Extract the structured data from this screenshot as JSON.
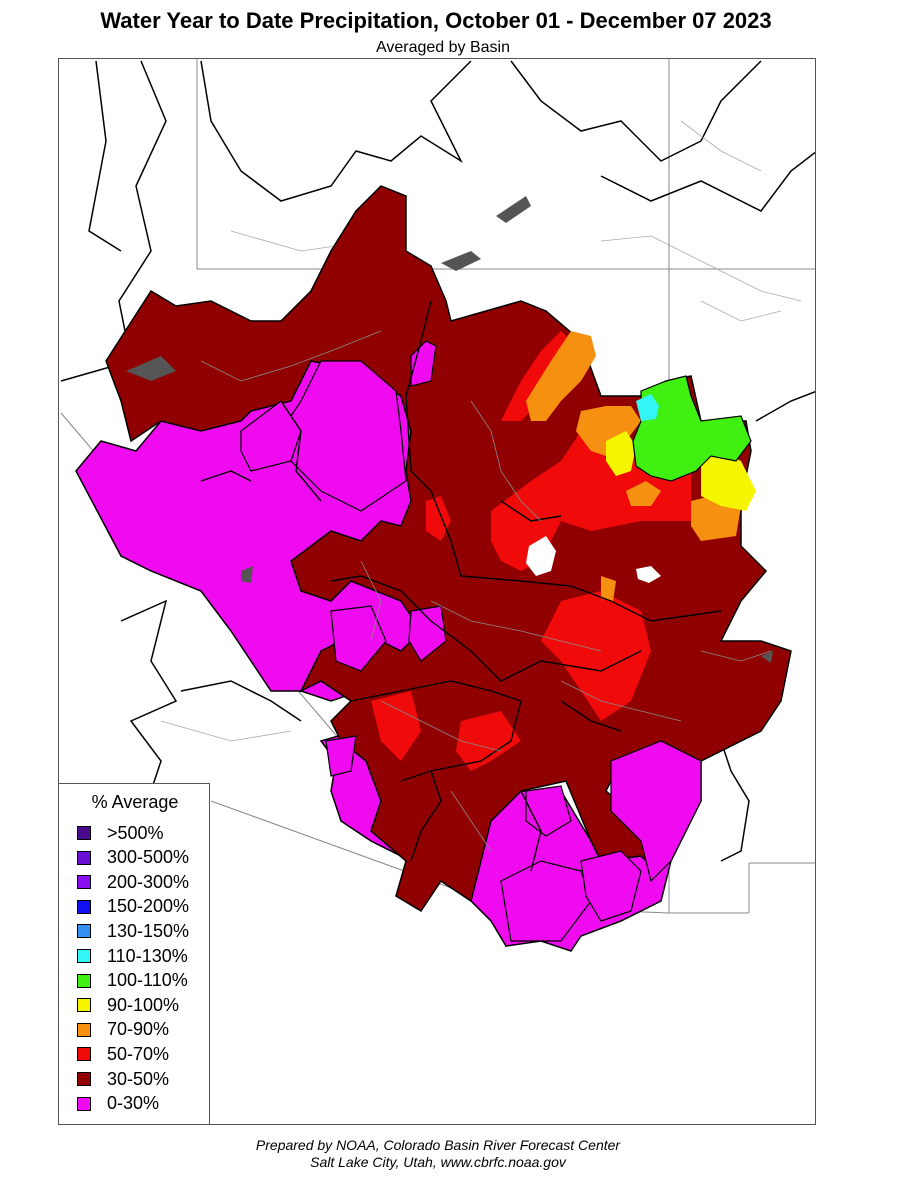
{
  "header": {
    "title": "Water Year to Date Precipitation, October 01  - December 07 2023",
    "subtitle": "Averaged by Basin"
  },
  "legend": {
    "title": "% Average",
    "items": [
      {
        "label": ">500%",
        "color": "#4B0C8C"
      },
      {
        "label": "300-500%",
        "color": "#6A0FD6"
      },
      {
        "label": "200-300%",
        "color": "#8A0FF0"
      },
      {
        "label": "150-200%",
        "color": "#1010F0"
      },
      {
        "label": "130-150%",
        "color": "#3390F0"
      },
      {
        "label": "110-130%",
        "color": "#33F5F5"
      },
      {
        "label": "100-110%",
        "color": "#40F010"
      },
      {
        "label": "90-100%",
        "color": "#F5F500"
      },
      {
        "label": "70-90%",
        "color": "#F59010"
      },
      {
        "label": "50-70%",
        "color": "#F00A0A"
      },
      {
        "label": "30-50%",
        "color": "#910000"
      },
      {
        "label": "0-30%",
        "color": "#F00AF0"
      }
    ]
  },
  "footer": {
    "line1": "Prepared by NOAA, Colorado Basin River Forecast Center",
    "line2": "Salt Lake City, Utah, www.cbrfc.noaa.gov"
  }
}
